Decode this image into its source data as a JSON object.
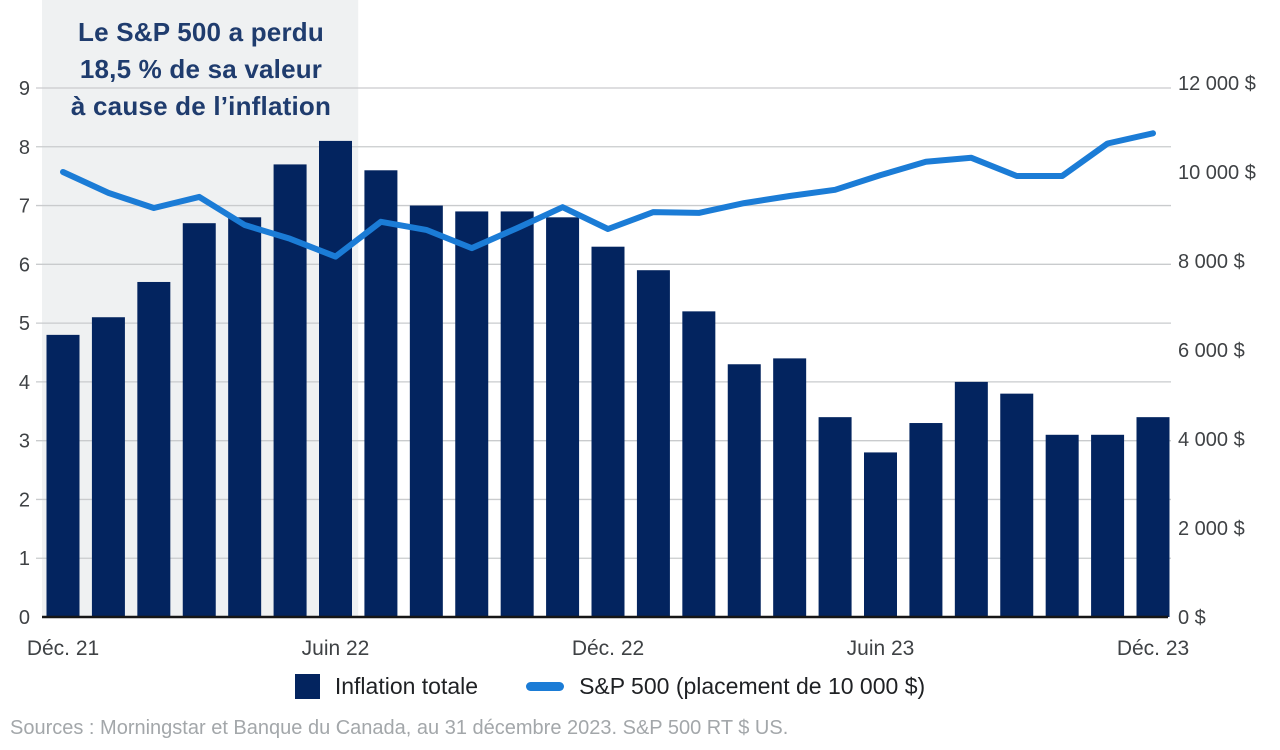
{
  "annotation": {
    "lines": [
      "Le S&P 500 a perdu",
      "18,5 % de sa valeur",
      "à cause de l’inflation"
    ]
  },
  "legend": {
    "items": [
      {
        "label": "Inflation totale",
        "marker": "square-swatch"
      },
      {
        "label": "S&P 500 (placement de 10 000 $)",
        "marker": "line-swatch"
      }
    ]
  },
  "source": "Sources : Morningstar et Banque du Canada, au 31 décembre 2023. S&P 500 RT $ US.",
  "colors": {
    "bar": "#03245f",
    "line": "#1b7cd6",
    "annotation_text": "#1f3c6e",
    "highlight_bg": "#eff1f2",
    "gridline": "#c9cbcd",
    "axis_line": "#161616",
    "tick_text": "#3f4245",
    "legend_text": "#1f2124",
    "source_text": "#a3a7aa"
  },
  "chart_data": {
    "type": "combo-bar-line",
    "x_description": "Monthly, December 2021 to December 2023 (25 points)",
    "x_ticks": [
      {
        "index": 0,
        "label": "Déc. 21"
      },
      {
        "index": 6,
        "label": "Juin 22"
      },
      {
        "index": 12,
        "label": "Déc. 22"
      },
      {
        "index": 18,
        "label": "Juin 23"
      },
      {
        "index": 24,
        "label": "Déc. 23"
      }
    ],
    "series": [
      {
        "name": "Inflation totale",
        "type": "bar",
        "axis": "left",
        "unit": "%",
        "values": [
          4.8,
          5.1,
          5.7,
          6.7,
          6.8,
          7.7,
          8.1,
          7.6,
          7.0,
          6.9,
          6.9,
          6.8,
          6.3,
          5.9,
          5.2,
          4.3,
          4.4,
          3.4,
          2.8,
          3.3,
          4.0,
          3.8,
          3.1,
          3.1,
          3.4
        ]
      },
      {
        "name": "S&P 500 (placement de 10 000 $)",
        "type": "line",
        "axis": "right",
        "unit": "$",
        "values": [
          10000,
          9530,
          9190,
          9440,
          8810,
          8500,
          8100,
          8880,
          8700,
          8290,
          8740,
          9210,
          8720,
          9100,
          9080,
          9300,
          9460,
          9600,
          9930,
          10230,
          10320,
          9910,
          9910,
          10640,
          10870
        ]
      }
    ],
    "y_left": {
      "min": 0,
      "max": 9,
      "step": 1,
      "tick_labels": [
        "0",
        "1",
        "2",
        "3",
        "4",
        "5",
        "6",
        "7",
        "8",
        "9"
      ]
    },
    "y_right": {
      "min": 0,
      "max": 12000,
      "step": 2000,
      "tick_labels": [
        "0 $",
        "2 000 $",
        "4 000 $",
        "6 000 $",
        "8 000 $",
        "10 000 $",
        "12 000 $"
      ]
    },
    "grid": "horizontal-left-axis",
    "legend_position": "bottom-center",
    "highlight_region": {
      "start_index": 0,
      "end_index": 6.5,
      "note": "shaded band behind Déc. 21 – mi-2022"
    }
  }
}
